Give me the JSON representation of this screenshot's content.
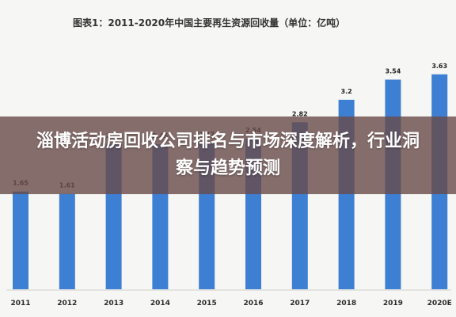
{
  "chart_data": {
    "type": "bar",
    "title": "图表1：2011-2020年中国主要再生资源回收量（单位：亿吨）",
    "categories": [
      "2011",
      "2012",
      "2013",
      "2014",
      "2015",
      "2016",
      "2017",
      "2018",
      "2019",
      "2020E"
    ],
    "values": [
      1.65,
      1.61,
      2.45,
      2.45,
      2.47,
      2.54,
      2.82,
      3.2,
      3.54,
      3.63
    ],
    "value_labels": [
      "1.65",
      "1.61",
      "2.45",
      "2.45",
      "2.47",
      "2.54",
      "2.82",
      "3.2",
      "3.54",
      "3.63"
    ],
    "ylim": [
      0,
      4.35
    ],
    "grid": false,
    "bar_color": "#3d7fd3"
  },
  "overlay": {
    "headline": "淄博活动房回收公司排名与市场深度解析，行业洞察与趋势预测"
  }
}
